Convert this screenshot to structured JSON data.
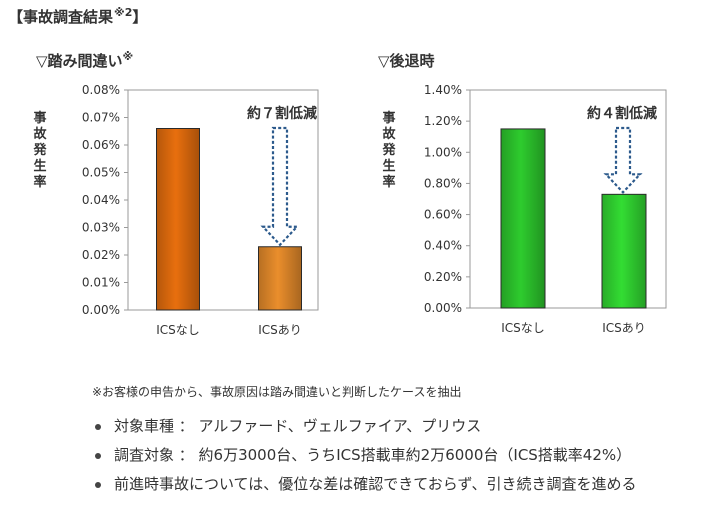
{
  "heading": {
    "text": "【事故調査結果",
    "sup": "※2",
    "close": "】"
  },
  "charts": [
    {
      "title": "▽踏み間違い",
      "title_sup": "※",
      "annotation": "約７割低減"
    },
    {
      "title": "▽後退時",
      "title_sup": "",
      "annotation": "約４割低減"
    }
  ],
  "chart_data": [
    {
      "type": "bar",
      "ylabel": "事故発生率",
      "categories": [
        "ICSなし",
        "ICSあり"
      ],
      "values": [
        0.066,
        0.023
      ],
      "value_unit": "%",
      "ylim": [
        0,
        0.08
      ],
      "yticks": [
        "0.00%",
        "0.01%",
        "0.02%",
        "0.03%",
        "0.04%",
        "0.05%",
        "0.06%",
        "0.07%",
        "0.08%"
      ],
      "grid": false,
      "colors": [
        "#e86f0e",
        "#ea8e2c"
      ]
    },
    {
      "type": "bar",
      "ylabel": "事故発生率",
      "categories": [
        "ICSなし",
        "ICSあり"
      ],
      "values": [
        1.15,
        0.73
      ],
      "value_unit": "%",
      "ylim": [
        0,
        1.4
      ],
      "yticks": [
        "0.00%",
        "0.20%",
        "0.40%",
        "0.60%",
        "0.80%",
        "1.00%",
        "1.20%",
        "1.40%"
      ],
      "grid": false,
      "colors": [
        "#2ecc2e",
        "#33dd33"
      ]
    }
  ],
  "footnote": "※お客様の申告から、事故原因は踏み間違いと判断したケースを抽出",
  "notes": [
    "対象車種 ： アルファード、ヴェルファイア、プリウス",
    "調査対象 ： 約6万3000台、うちICS搭載車約2万6000台（ICS搭載率42%）",
    "前進時事故については、優位な差は確認できておらず、引き続き調査を進める"
  ]
}
